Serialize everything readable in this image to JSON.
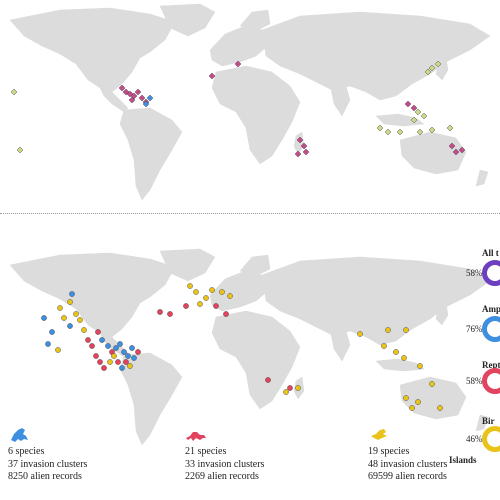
{
  "colors": {
    "amphibians": "#3f8fe0",
    "reptiles": "#e2445f",
    "birds": "#e9c31a",
    "all": "#6c3fc0",
    "top_diamond_magenta": "#c24b8a",
    "top_diamond_olive": "#c8d98a",
    "land": "#dcdcdc"
  },
  "legend": {
    "items": [
      {
        "key": "all",
        "label": "All t",
        "pct": "58%"
      },
      {
        "key": "amphibians",
        "label": "Amphi",
        "pct": "76%"
      },
      {
        "key": "reptiles",
        "label": "Rept",
        "pct": "58%"
      },
      {
        "key": "birds",
        "label": "Bir",
        "pct": "46%"
      }
    ],
    "islands_label": "Islands"
  },
  "stats": [
    {
      "key": "amphibians",
      "icon": "frog-icon",
      "species": "6 species",
      "clusters": "37 invasion clusters",
      "records": "8250 alien records"
    },
    {
      "key": "reptiles",
      "icon": "lizard-icon",
      "species": "21 species",
      "clusters": "33 invasion clusters",
      "records": "2269 alien records"
    },
    {
      "key": "birds",
      "icon": "bird-icon",
      "species": "19 species",
      "clusters": "48 invasion clusters",
      "records": "69599 alien records"
    }
  ]
}
